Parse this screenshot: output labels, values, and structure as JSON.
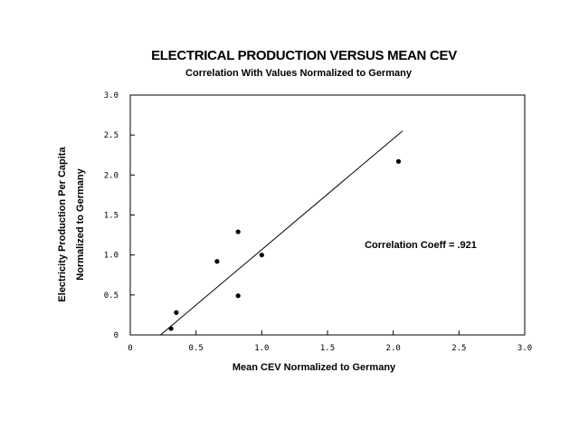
{
  "chart_data": {
    "type": "scatter",
    "title": "ELECTRICAL PRODUCTION VERSUS MEAN CEV",
    "subtitle": "Correlation With Values Normalized to Germany",
    "xlabel": "Mean CEV Normalized to Germany",
    "ylabel_lines": [
      "Electricity Production Per Capita",
      "Normalized to Germany"
    ],
    "xlim": [
      0,
      3.0
    ],
    "ylim": [
      0,
      3.0
    ],
    "x_ticks": [
      "0",
      "0.5",
      "1.0",
      "1.5",
      "2.0",
      "2.5",
      "3.0"
    ],
    "y_ticks": [
      "0",
      "0.5",
      "1.0",
      "1.5",
      "2.0",
      "2.5",
      "3.0"
    ],
    "grid": false,
    "points": [
      {
        "x": 0.31,
        "y": 0.08
      },
      {
        "x": 0.35,
        "y": 0.28
      },
      {
        "x": 0.66,
        "y": 0.92
      },
      {
        "x": 0.82,
        "y": 1.29
      },
      {
        "x": 0.82,
        "y": 0.49
      },
      {
        "x": 1.0,
        "y": 1.0
      },
      {
        "x": 2.04,
        "y": 2.17
      }
    ],
    "regression_line": {
      "x": [
        0.23,
        2.07
      ],
      "y": [
        0.0,
        2.55
      ]
    },
    "annotation": "Correlation Coeff = .921"
  }
}
